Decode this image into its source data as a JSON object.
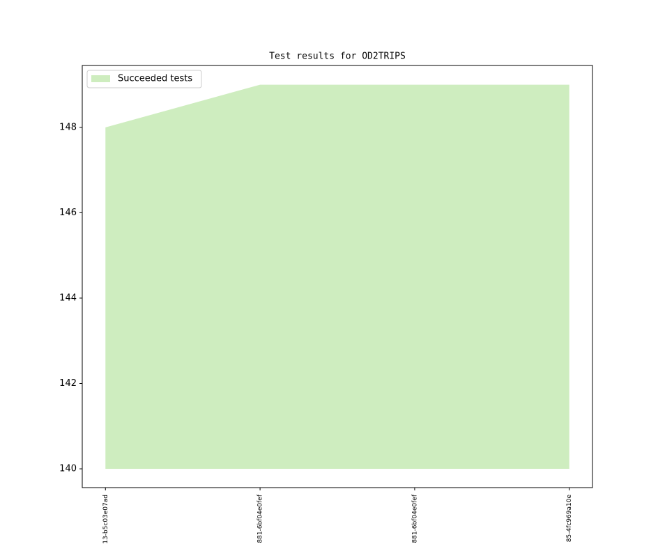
{
  "chart_data": {
    "type": "area",
    "title": "Test results for OD2TRIPS",
    "categories": [
      "13-b5c03e07ad",
      "881-6bf04e0fef",
      "881-6bf04e0fef",
      "85-4fc969a10e"
    ],
    "series": [
      {
        "name": "Succeeded tests",
        "color": "#ceedbf",
        "values": [
          148,
          149,
          149,
          149
        ]
      }
    ],
    "area_base": 140,
    "ylim": [
      139.56,
      149.45
    ],
    "yticks": [
      140,
      142,
      144,
      146,
      148
    ],
    "legend": "upper left"
  }
}
